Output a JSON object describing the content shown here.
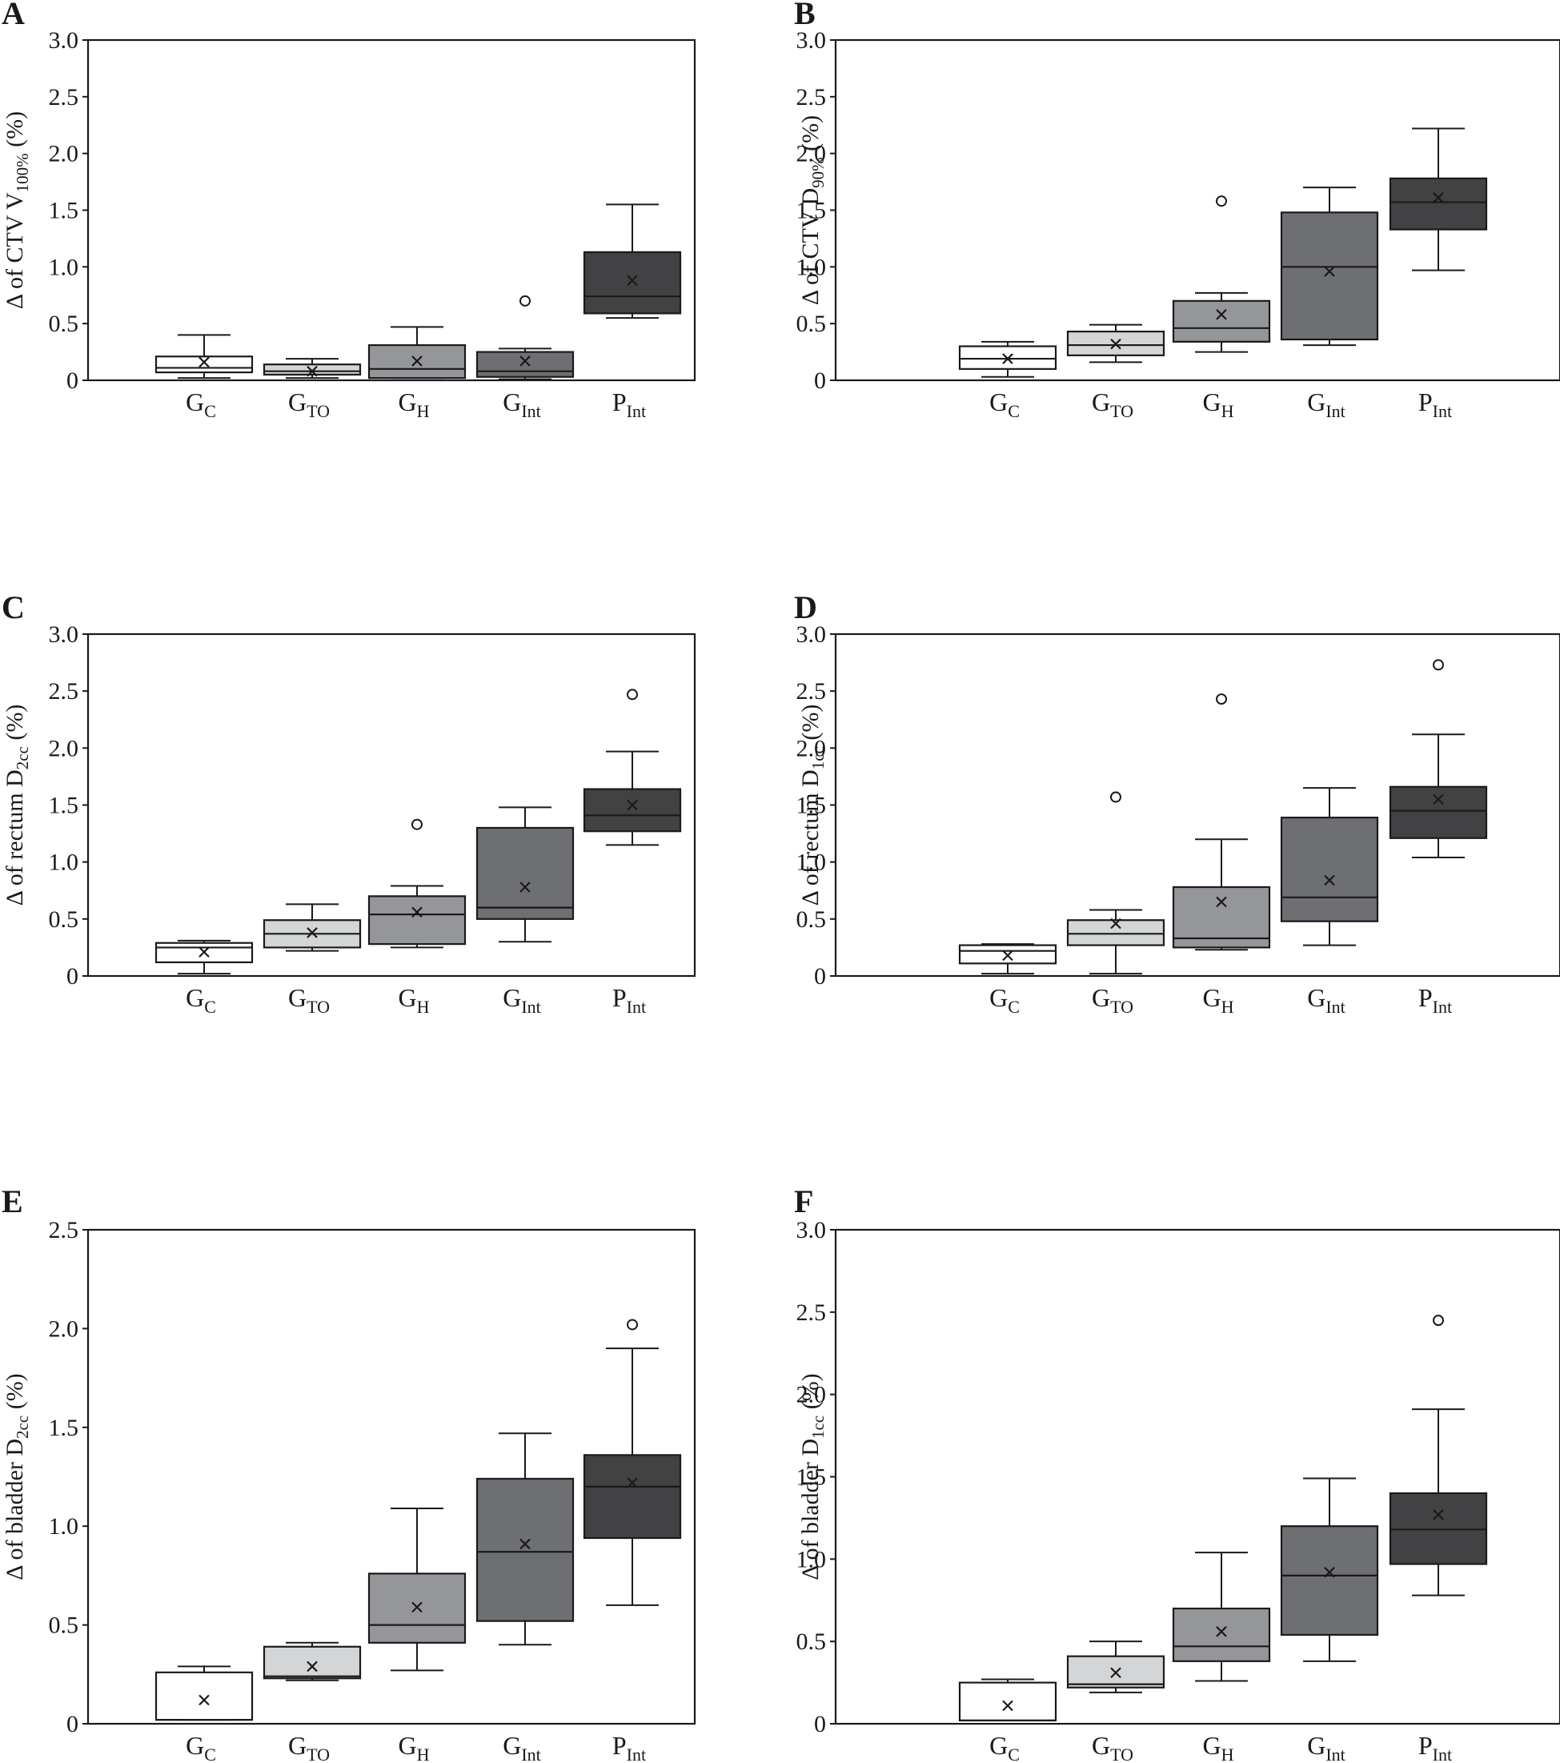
{
  "figure": {
    "panel_letters": [
      "A",
      "B",
      "C",
      "D",
      "E",
      "F"
    ]
  },
  "style": {
    "box_fills": [
      "#ffffff",
      "#d4d5d7",
      "#959699",
      "#6e6f73",
      "#424244"
    ],
    "stroke": "#1a1a1a",
    "background": "#ffffff"
  },
  "chart_data": [
    {
      "panel": "A",
      "type": "box",
      "ylabel": {
        "prefix": "Δ of CTV V",
        "sub": "100%",
        "suffix": " (%)"
      },
      "ylim": [
        0,
        3.0
      ],
      "yticks": [
        0,
        0.5,
        1.0,
        1.5,
        2.0,
        2.5,
        3.0
      ],
      "ytick_labels": [
        "0",
        "0.5",
        "1.0",
        "1.5",
        "2.0",
        "2.5",
        "3.0"
      ],
      "categories": [
        {
          "main": "G",
          "sub": "C"
        },
        {
          "main": "G",
          "sub": "TO"
        },
        {
          "main": "G",
          "sub": "H"
        },
        {
          "main": "G",
          "sub": "Int"
        },
        {
          "main": "P",
          "sub": "Int"
        }
      ],
      "boxes": [
        {
          "whisker_low": 0.02,
          "q1": 0.07,
          "median": 0.11,
          "q3": 0.21,
          "whisker_high": 0.4,
          "mean": 0.16,
          "outliers": []
        },
        {
          "whisker_low": 0.02,
          "q1": 0.05,
          "median": 0.08,
          "q3": 0.14,
          "whisker_high": 0.19,
          "mean": 0.08,
          "outliers": []
        },
        {
          "whisker_low": 0.02,
          "q1": 0.02,
          "median": 0.1,
          "q3": 0.31,
          "whisker_high": 0.47,
          "mean": 0.17,
          "outliers": []
        },
        {
          "whisker_low": 0.01,
          "q1": 0.03,
          "median": 0.08,
          "q3": 0.25,
          "whisker_high": 0.28,
          "mean": 0.17,
          "outliers": [
            0.7
          ]
        },
        {
          "whisker_low": 0.55,
          "q1": 0.59,
          "median": 0.74,
          "q3": 1.13,
          "whisker_high": 1.55,
          "mean": 0.88,
          "outliers": []
        }
      ]
    },
    {
      "panel": "B",
      "type": "box",
      "ylabel": {
        "prefix": "Δ of CTV D",
        "sub": "90%",
        "suffix": " (%)"
      },
      "ylim": [
        0,
        3.0
      ],
      "yticks": [
        0,
        0.5,
        1.0,
        1.5,
        2.0,
        2.5,
        3.0
      ],
      "ytick_labels": [
        "0",
        "0.5",
        "1.0",
        "1.5",
        "2.0",
        "2.5",
        "3.0"
      ],
      "categories": [
        {
          "main": "G",
          "sub": "C"
        },
        {
          "main": "G",
          "sub": "TO"
        },
        {
          "main": "G",
          "sub": "H"
        },
        {
          "main": "G",
          "sub": "Int"
        },
        {
          "main": "P",
          "sub": "Int"
        }
      ],
      "boxes": [
        {
          "whisker_low": 0.03,
          "q1": 0.1,
          "median": 0.19,
          "q3": 0.3,
          "whisker_high": 0.34,
          "mean": 0.19,
          "outliers": []
        },
        {
          "whisker_low": 0.16,
          "q1": 0.22,
          "median": 0.31,
          "q3": 0.43,
          "whisker_high": 0.49,
          "mean": 0.32,
          "outliers": []
        },
        {
          "whisker_low": 0.25,
          "q1": 0.34,
          "median": 0.46,
          "q3": 0.7,
          "whisker_high": 0.77,
          "mean": 0.58,
          "outliers": [
            1.58
          ]
        },
        {
          "whisker_low": 0.31,
          "q1": 0.36,
          "median": 1.0,
          "q3": 1.48,
          "whisker_high": 1.7,
          "mean": 0.96,
          "outliers": []
        },
        {
          "whisker_low": 0.97,
          "q1": 1.33,
          "median": 1.57,
          "q3": 1.78,
          "whisker_high": 2.22,
          "mean": 1.61,
          "outliers": []
        }
      ]
    },
    {
      "panel": "C",
      "type": "box",
      "ylabel": {
        "prefix": "Δ of rectum D",
        "sub": "2cc",
        "suffix": " (%)"
      },
      "ylim": [
        0,
        3.0
      ],
      "yticks": [
        0,
        0.5,
        1.0,
        1.5,
        2.0,
        2.5,
        3.0
      ],
      "ytick_labels": [
        "0",
        "0.5",
        "1.0",
        "1.5",
        "2.0",
        "2.5",
        "3.0"
      ],
      "categories": [
        {
          "main": "G",
          "sub": "C"
        },
        {
          "main": "G",
          "sub": "TO"
        },
        {
          "main": "G",
          "sub": "H"
        },
        {
          "main": "G",
          "sub": "Int"
        },
        {
          "main": "P",
          "sub": "Int"
        }
      ],
      "boxes": [
        {
          "whisker_low": 0.02,
          "q1": 0.12,
          "median": 0.25,
          "q3": 0.29,
          "whisker_high": 0.31,
          "mean": 0.21,
          "outliers": []
        },
        {
          "whisker_low": 0.22,
          "q1": 0.25,
          "median": 0.37,
          "q3": 0.49,
          "whisker_high": 0.63,
          "mean": 0.38,
          "outliers": []
        },
        {
          "whisker_low": 0.25,
          "q1": 0.28,
          "median": 0.54,
          "q3": 0.7,
          "whisker_high": 0.79,
          "mean": 0.56,
          "outliers": [
            1.33
          ]
        },
        {
          "whisker_low": 0.3,
          "q1": 0.5,
          "median": 0.6,
          "q3": 1.3,
          "whisker_high": 1.48,
          "mean": 0.78,
          "outliers": []
        },
        {
          "whisker_low": 1.15,
          "q1": 1.27,
          "median": 1.41,
          "q3": 1.64,
          "whisker_high": 1.97,
          "mean": 1.5,
          "outliers": [
            2.47
          ]
        }
      ]
    },
    {
      "panel": "D",
      "type": "box",
      "ylabel": {
        "prefix": "Δ of rectum D",
        "sub": "1cc",
        "suffix": " (%)"
      },
      "ylim": [
        0,
        3.0
      ],
      "yticks": [
        0,
        0.5,
        1.0,
        1.5,
        2.0,
        2.5,
        3.0
      ],
      "ytick_labels": [
        "0",
        "0.5",
        "1.0",
        "1.5",
        "2.0",
        "2.5",
        "3.0"
      ],
      "categories": [
        {
          "main": "G",
          "sub": "C"
        },
        {
          "main": "G",
          "sub": "TO"
        },
        {
          "main": "G",
          "sub": "H"
        },
        {
          "main": "G",
          "sub": "Int"
        },
        {
          "main": "P",
          "sub": "Int"
        }
      ],
      "boxes": [
        {
          "whisker_low": 0.02,
          "q1": 0.11,
          "median": 0.22,
          "q3": 0.27,
          "whisker_high": 0.28,
          "mean": 0.18,
          "outliers": []
        },
        {
          "whisker_low": 0.02,
          "q1": 0.27,
          "median": 0.37,
          "q3": 0.49,
          "whisker_high": 0.58,
          "mean": 0.46,
          "outliers": [
            1.57
          ]
        },
        {
          "whisker_low": 0.23,
          "q1": 0.25,
          "median": 0.33,
          "q3": 0.78,
          "whisker_high": 1.2,
          "mean": 0.65,
          "outliers": [
            2.43
          ]
        },
        {
          "whisker_low": 0.27,
          "q1": 0.48,
          "median": 0.69,
          "q3": 1.39,
          "whisker_high": 1.65,
          "mean": 0.84,
          "outliers": []
        },
        {
          "whisker_low": 1.04,
          "q1": 1.21,
          "median": 1.45,
          "q3": 1.66,
          "whisker_high": 2.12,
          "mean": 1.55,
          "outliers": [
            2.73
          ]
        }
      ]
    },
    {
      "panel": "E",
      "type": "box",
      "ylabel": {
        "prefix": "Δ of bladder D",
        "sub": "2cc",
        "suffix": " (%)"
      },
      "ylim": [
        0,
        2.5
      ],
      "yticks": [
        0,
        0.5,
        1.0,
        1.5,
        2.0,
        2.5
      ],
      "ytick_labels": [
        "0",
        "0.5",
        "1.0",
        "1.5",
        "2.0",
        "2.5"
      ],
      "categories": [
        {
          "main": "G",
          "sub": "C"
        },
        {
          "main": "G",
          "sub": "TO"
        },
        {
          "main": "G",
          "sub": "H"
        },
        {
          "main": "G",
          "sub": "Int"
        },
        {
          "main": "P",
          "sub": "Int"
        }
      ],
      "boxes": [
        {
          "whisker_low": 0.02,
          "q1": 0.02,
          "median": 0.02,
          "q3": 0.26,
          "whisker_high": 0.29,
          "mean": 0.12,
          "outliers": []
        },
        {
          "whisker_low": 0.22,
          "q1": 0.23,
          "median": 0.24,
          "q3": 0.39,
          "whisker_high": 0.41,
          "mean": 0.29,
          "outliers": []
        },
        {
          "whisker_low": 0.27,
          "q1": 0.41,
          "median": 0.5,
          "q3": 0.76,
          "whisker_high": 1.09,
          "mean": 0.59,
          "outliers": []
        },
        {
          "whisker_low": 0.4,
          "q1": 0.52,
          "median": 0.87,
          "q3": 1.24,
          "whisker_high": 1.47,
          "mean": 0.91,
          "outliers": []
        },
        {
          "whisker_low": 0.6,
          "q1": 0.94,
          "median": 1.2,
          "q3": 1.36,
          "whisker_high": 1.9,
          "mean": 1.22,
          "outliers": [
            2.02
          ]
        }
      ]
    },
    {
      "panel": "F",
      "type": "box",
      "ylabel": {
        "prefix": "Δ of bladder D",
        "sub": "1cc",
        "suffix": " (%)"
      },
      "ylim": [
        0,
        3.0
      ],
      "yticks": [
        0,
        0.5,
        1.0,
        1.5,
        2.0,
        2.5,
        3.0
      ],
      "ytick_labels": [
        "0",
        "0.5",
        "1.0",
        "1.5",
        "2.0",
        "2.5",
        "3.0"
      ],
      "categories": [
        {
          "main": "G",
          "sub": "C"
        },
        {
          "main": "G",
          "sub": "TO"
        },
        {
          "main": "G",
          "sub": "H"
        },
        {
          "main": "G",
          "sub": "Int"
        },
        {
          "main": "P",
          "sub": "Int"
        }
      ],
      "boxes": [
        {
          "whisker_low": 0.02,
          "q1": 0.02,
          "median": 0.02,
          "q3": 0.25,
          "whisker_high": 0.27,
          "mean": 0.11,
          "outliers": []
        },
        {
          "whisker_low": 0.19,
          "q1": 0.22,
          "median": 0.24,
          "q3": 0.41,
          "whisker_high": 0.5,
          "mean": 0.31,
          "outliers": []
        },
        {
          "whisker_low": 0.26,
          "q1": 0.38,
          "median": 0.47,
          "q3": 0.7,
          "whisker_high": 1.04,
          "mean": 0.56,
          "outliers": []
        },
        {
          "whisker_low": 0.38,
          "q1": 0.54,
          "median": 0.9,
          "q3": 1.2,
          "whisker_high": 1.49,
          "mean": 0.92,
          "outliers": []
        },
        {
          "whisker_low": 0.78,
          "q1": 0.97,
          "median": 1.18,
          "q3": 1.4,
          "whisker_high": 1.91,
          "mean": 1.27,
          "outliers": [
            2.45
          ]
        }
      ]
    }
  ]
}
